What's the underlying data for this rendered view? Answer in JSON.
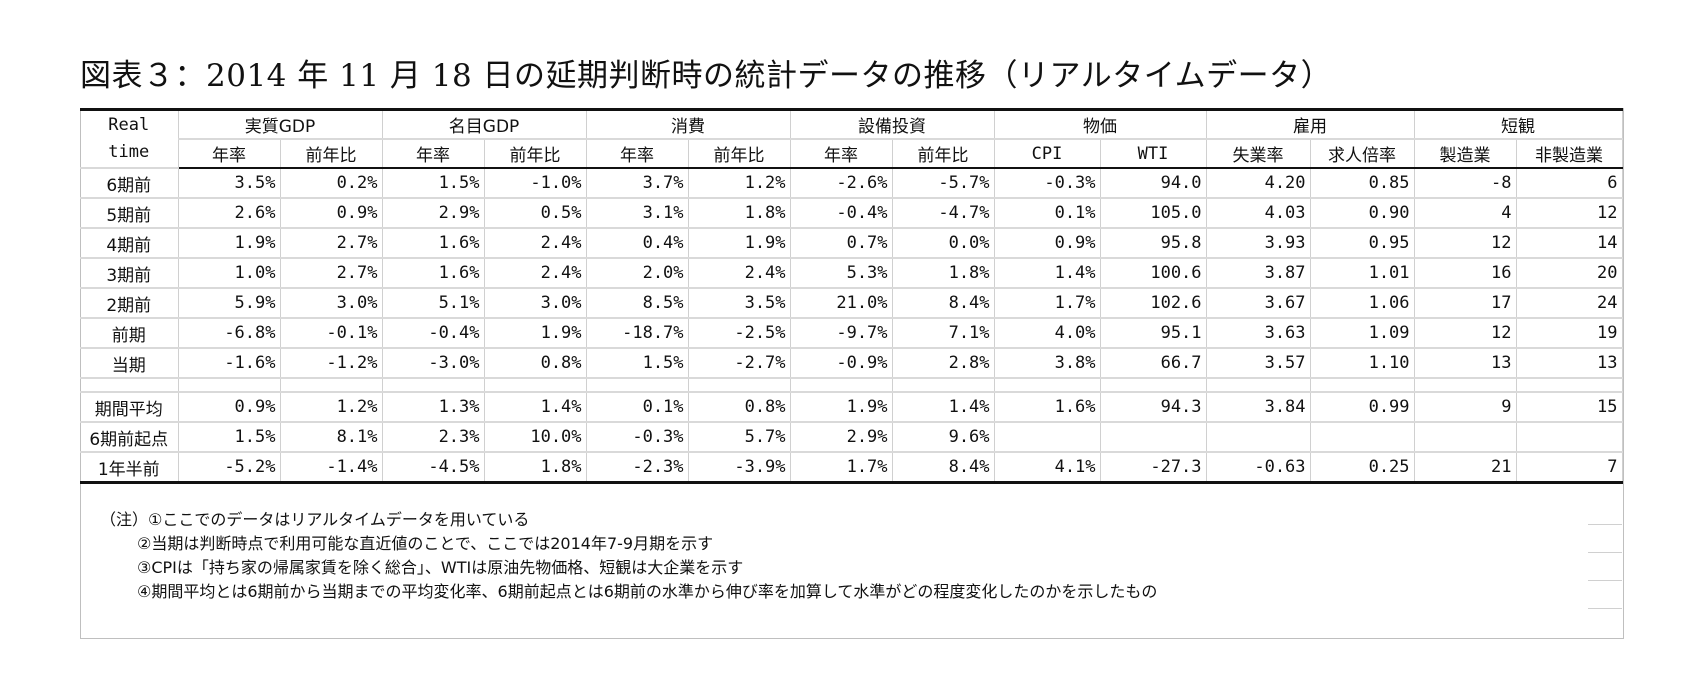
{
  "title": "図表３：2014 年 11 月 18 日の延期判断時の統計データの推移（リアルタイムデータ）",
  "table": {
    "corner": [
      "Real",
      "time"
    ],
    "groups": [
      "実質GDP",
      "名目GDP",
      "消費",
      "設備投資",
      "物価",
      "雇用",
      "短観"
    ],
    "subheaders": [
      "年率",
      "前年比",
      "年率",
      "前年比",
      "年率",
      "前年比",
      "年率",
      "前年比",
      "CPI",
      "WTI",
      "失業率",
      "求人倍率",
      "製造業",
      "非製造業"
    ],
    "rows": [
      {
        "label": "6期前",
        "cells": [
          "3.5%",
          "0.2%",
          "1.5%",
          "-1.0%",
          "3.7%",
          "1.2%",
          "-2.6%",
          "-5.7%",
          "-0.3%",
          "94.0",
          "4.20",
          "0.85",
          "-8",
          "6"
        ]
      },
      {
        "label": "5期前",
        "cells": [
          "2.6%",
          "0.9%",
          "2.9%",
          "0.5%",
          "3.1%",
          "1.8%",
          "-0.4%",
          "-4.7%",
          "0.1%",
          "105.0",
          "4.03",
          "0.90",
          "4",
          "12"
        ]
      },
      {
        "label": "4期前",
        "cells": [
          "1.9%",
          "2.7%",
          "1.6%",
          "2.4%",
          "0.4%",
          "1.9%",
          "0.7%",
          "0.0%",
          "0.9%",
          "95.8",
          "3.93",
          "0.95",
          "12",
          "14"
        ]
      },
      {
        "label": "3期前",
        "cells": [
          "1.0%",
          "2.7%",
          "1.6%",
          "2.4%",
          "2.0%",
          "2.4%",
          "5.3%",
          "1.8%",
          "1.4%",
          "100.6",
          "3.87",
          "1.01",
          "16",
          "20"
        ]
      },
      {
        "label": "2期前",
        "cells": [
          "5.9%",
          "3.0%",
          "5.1%",
          "3.0%",
          "8.5%",
          "3.5%",
          "21.0%",
          "8.4%",
          "1.7%",
          "102.6",
          "3.67",
          "1.06",
          "17",
          "24"
        ]
      },
      {
        "label": "前期",
        "cells": [
          "-6.8%",
          "-0.1%",
          "-0.4%",
          "1.9%",
          "-18.7%",
          "-2.5%",
          "-9.7%",
          "7.1%",
          "4.0%",
          "95.1",
          "3.63",
          "1.09",
          "12",
          "19"
        ]
      },
      {
        "label": "当期",
        "cells": [
          "-1.6%",
          "-1.2%",
          "-3.0%",
          "0.8%",
          "1.5%",
          "-2.7%",
          "-0.9%",
          "2.8%",
          "3.8%",
          "66.7",
          "3.57",
          "1.10",
          "13",
          "13"
        ]
      }
    ],
    "summary_rows": [
      {
        "label": "期間平均",
        "cells": [
          "0.9%",
          "1.2%",
          "1.3%",
          "1.4%",
          "0.1%",
          "0.8%",
          "1.9%",
          "1.4%",
          "1.6%",
          "94.3",
          "3.84",
          "0.99",
          "9",
          "15"
        ]
      },
      {
        "label": "6期前起点",
        "cells": [
          "1.5%",
          "8.1%",
          "2.3%",
          "10.0%",
          "-0.3%",
          "5.7%",
          "2.9%",
          "9.6%",
          "",
          "",
          "",
          "",
          "",
          ""
        ]
      },
      {
        "label": "1年半前",
        "cells": [
          "-5.2%",
          "-1.4%",
          "-4.5%",
          "1.8%",
          "-2.3%",
          "-3.9%",
          "1.7%",
          "8.4%",
          "4.1%",
          "-27.3",
          "-0.63",
          "0.25",
          "21",
          "7"
        ]
      }
    ]
  },
  "notes": [
    "（注）①ここでのデータはリアルタイムデータを用いている",
    "②当期は判断時点で利用可能な直近値のことで、ここでは2014年7-9月期を示す",
    "③CPIは「持ち家の帰属家賃を除く総合」、WTIは原油先物価格、短観は大企業を示す",
    "④期間平均とは6期前から当期までの平均変化率、6期前起点とは6期前の水準から伸び率を加算して水準がどの程度変化したのかを示したもの"
  ]
}
